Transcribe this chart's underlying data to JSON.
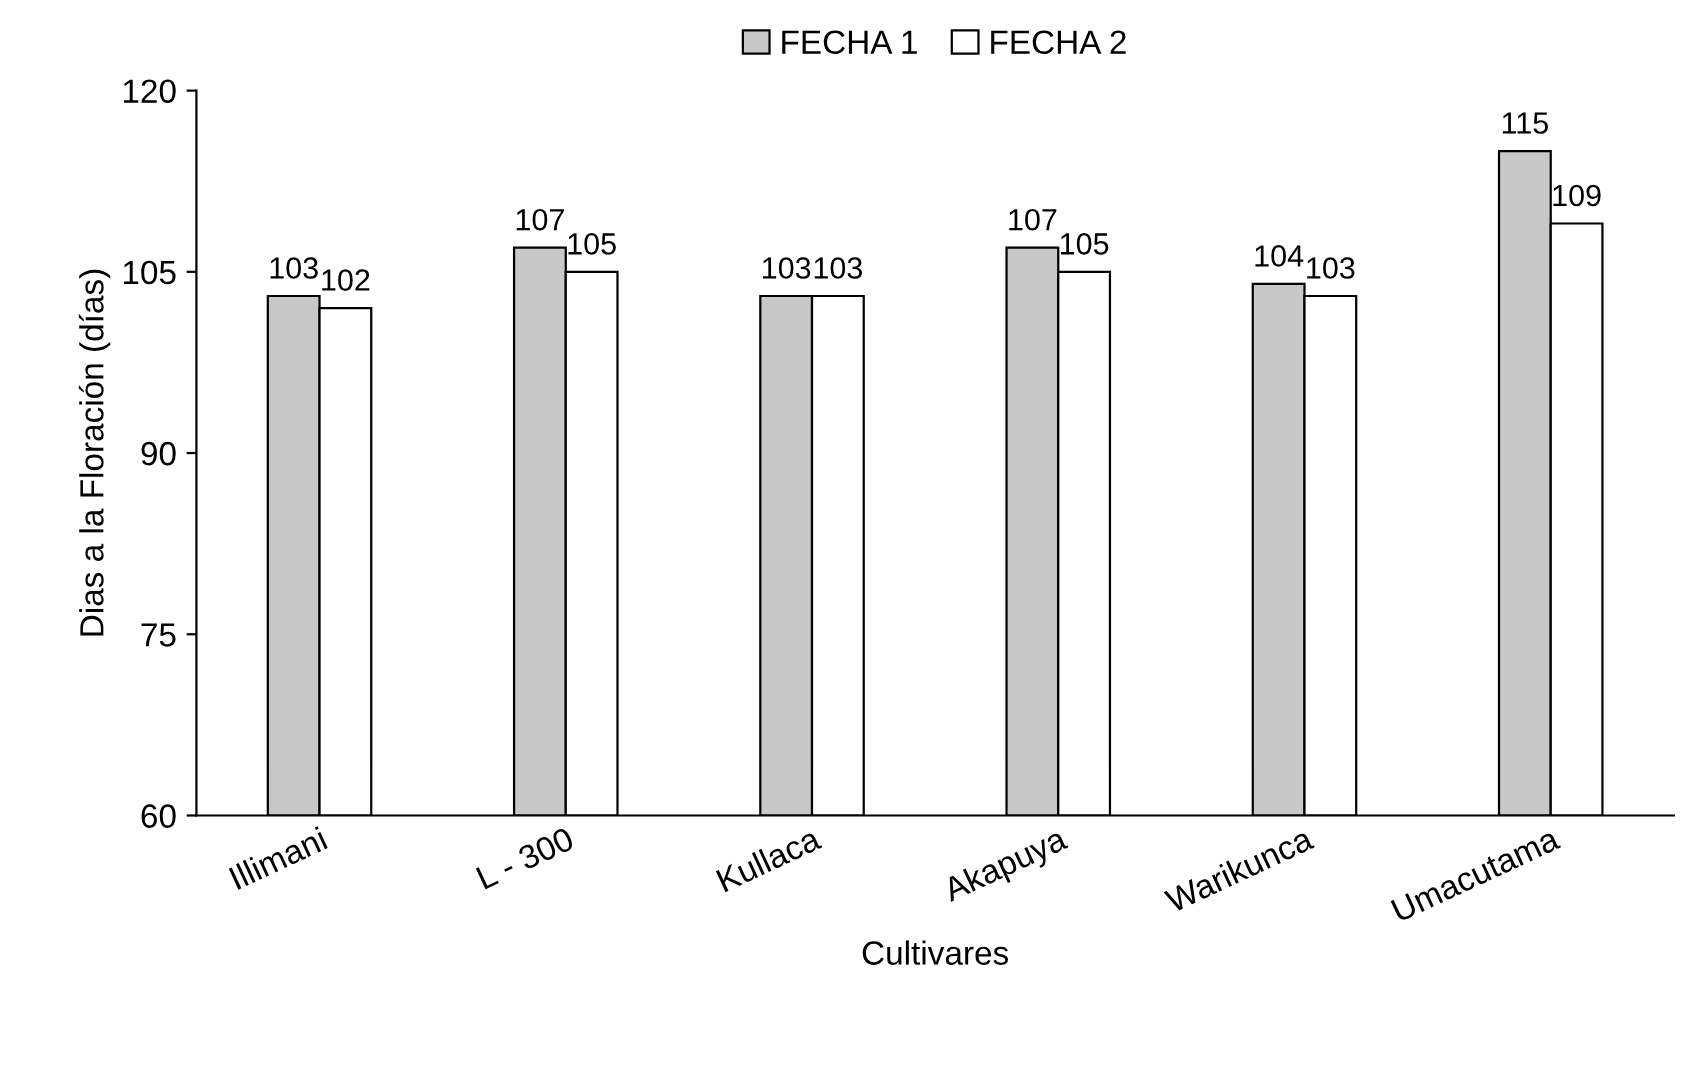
{
  "chart_data": {
    "type": "bar",
    "xlabel": "Cultivares",
    "ylabel": "Dias a la Floración (días)",
    "categories": [
      "Illimani",
      "L - 300",
      "Kullaca",
      "Akapuya",
      "Warikunca",
      "Umacutama"
    ],
    "series": [
      {
        "name": "FECHA 1",
        "color": "#c8c8c8",
        "values": [
          103,
          107,
          103,
          107,
          104,
          115
        ]
      },
      {
        "name": "FECHA 2",
        "color": "#ffffff",
        "values": [
          102,
          105,
          103,
          105,
          103,
          109
        ]
      }
    ],
    "ylim": [
      60,
      120
    ],
    "yticks": [
      60,
      75,
      90,
      105,
      120
    ],
    "data_labels": true,
    "legend": "top",
    "grid": false
  }
}
